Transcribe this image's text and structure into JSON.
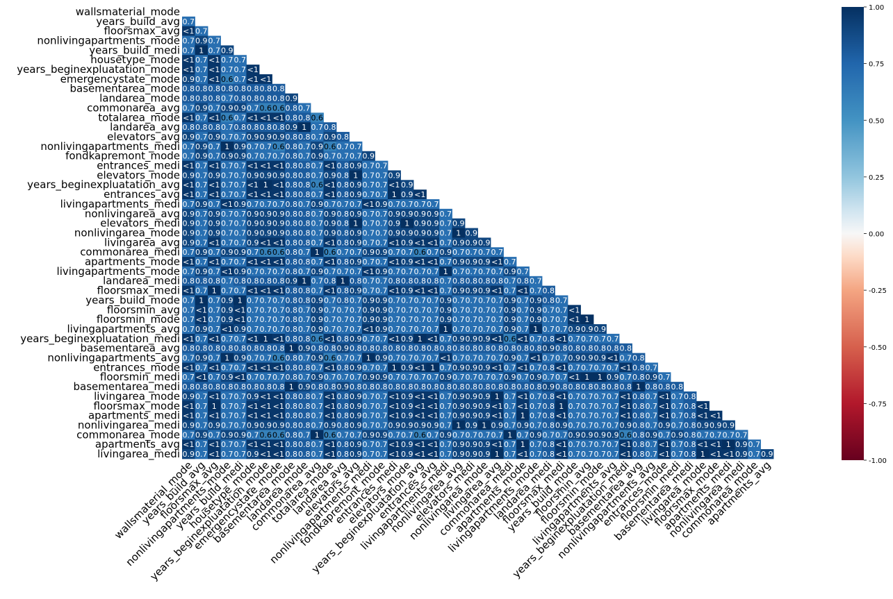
{
  "chart_data": {
    "type": "heatmap",
    "title": "",
    "xlabel": "",
    "ylabel": "",
    "mask": "lower-triangle (strictly below diagonal shown)",
    "variables": [
      "wallsmaterial_mode",
      "years_build_avg",
      "floorsmax_avg",
      "nonlivingapartments_mode",
      "years_build_medi",
      "housetype_mode",
      "years_beginexpluatation_mode",
      "emergencystate_mode",
      "basementarea_mode",
      "landarea_mode",
      "commonarea_avg",
      "totalarea_mode",
      "landarea_avg",
      "elevators_avg",
      "nonlivingapartments_medi",
      "fondkapremont_mode",
      "entrances_medi",
      "elevators_mode",
      "years_beginexpluatation_avg",
      "entrances_avg",
      "livingapartments_medi",
      "nonlivingarea_avg",
      "elevators_medi",
      "nonlivingarea_mode",
      "livingarea_avg",
      "commonarea_medi",
      "apartments_mode",
      "livingapartments_mode",
      "landarea_medi",
      "floorsmax_medi",
      "years_build_mode",
      "floorsmin_avg",
      "floorsmin_mode",
      "livingapartments_avg",
      "years_beginexpluatation_medi",
      "basementarea_avg",
      "nonlivingapartments_avg",
      "entrances_mode",
      "floorsmin_medi",
      "basementarea_medi",
      "livingarea_mode",
      "floorsmax_mode",
      "apartments_medi",
      "nonlivingarea_medi",
      "commonarea_mode",
      "apartments_avg",
      "livingarea_medi"
    ],
    "cells": [
      [],
      [
        "0.7"
      ],
      [
        "<1",
        "0.7"
      ],
      [
        "0.7",
        "0.9",
        "0.7"
      ],
      [
        "0.7",
        "1",
        "0.7",
        "0.9"
      ],
      [
        "<1",
        "0.7",
        "<1",
        "0.7",
        "0.7"
      ],
      [
        "<1",
        "0.7",
        "<1",
        "0.7",
        "0.7",
        "<1"
      ],
      [
        "0.9",
        "0.7",
        "<1",
        "0.6",
        "0.7",
        "<1",
        "<1"
      ],
      [
        "0.8",
        "0.8",
        "0.8",
        "0.8",
        "0.8",
        "0.8",
        "0.8",
        "0.8"
      ],
      [
        "0.8",
        "0.8",
        "0.8",
        "0.7",
        "0.8",
        "0.8",
        "0.8",
        "0.8",
        "0.9"
      ],
      [
        "0.7",
        "0.9",
        "0.7",
        "0.9",
        "0.9",
        "0.7",
        "0.6",
        "0.6",
        "0.8",
        "0.7"
      ],
      [
        "<1",
        "0.7",
        "<1",
        "0.6",
        "0.7",
        "<1",
        "<1",
        "<1",
        "0.8",
        "0.8",
        "0.6"
      ],
      [
        "0.8",
        "0.8",
        "0.8",
        "0.7",
        "0.8",
        "0.8",
        "0.8",
        "0.8",
        "0.9",
        "1",
        "0.7",
        "0.8"
      ],
      [
        "0.9",
        "0.7",
        "0.9",
        "0.7",
        "0.7",
        "0.9",
        "0.9",
        "0.9",
        "0.8",
        "0.8",
        "0.7",
        "0.9",
        "0.8"
      ],
      [
        "0.7",
        "0.9",
        "0.7",
        "1",
        "0.9",
        "0.7",
        "0.7",
        "0.6",
        "0.8",
        "0.7",
        "0.9",
        "0.6",
        "0.7",
        "0.7"
      ],
      [
        "0.7",
        "0.9",
        "0.7",
        "0.9",
        "0.9",
        "0.7",
        "0.7",
        "0.7",
        "0.8",
        "0.7",
        "0.9",
        "0.7",
        "0.7",
        "0.7",
        "0.9"
      ],
      [
        "<1",
        "0.7",
        "<1",
        "0.7",
        "0.7",
        "<1",
        "<1",
        "<1",
        "0.8",
        "0.8",
        "0.7",
        "<1",
        "0.8",
        "0.9",
        "0.7",
        "0.7"
      ],
      [
        "0.9",
        "0.7",
        "0.9",
        "0.7",
        "0.7",
        "0.9",
        "0.9",
        "0.9",
        "0.8",
        "0.8",
        "0.7",
        "0.9",
        "0.8",
        "1",
        "0.7",
        "0.7",
        "0.9"
      ],
      [
        "<1",
        "0.7",
        "<1",
        "0.7",
        "0.7",
        "<1",
        "1",
        "<1",
        "0.8",
        "0.8",
        "0.6",
        "<1",
        "0.8",
        "0.9",
        "0.7",
        "0.7",
        "<1",
        "0.9"
      ],
      [
        "<1",
        "0.7",
        "<1",
        "0.7",
        "0.7",
        "<1",
        "<1",
        "<1",
        "0.8",
        "0.8",
        "0.7",
        "<1",
        "0.8",
        "0.9",
        "0.7",
        "0.7",
        "1",
        "0.9",
        "<1"
      ],
      [
        "0.7",
        "0.9",
        "0.7",
        "<1",
        "0.9",
        "0.7",
        "0.7",
        "0.7",
        "0.8",
        "0.7",
        "0.9",
        "0.7",
        "0.7",
        "0.7",
        "<1",
        "0.9",
        "0.7",
        "0.7",
        "0.7",
        "0.7"
      ],
      [
        "0.9",
        "0.7",
        "0.9",
        "0.7",
        "0.7",
        "0.9",
        "0.9",
        "0.9",
        "0.8",
        "0.8",
        "0.7",
        "0.9",
        "0.8",
        "0.9",
        "0.7",
        "0.7",
        "0.9",
        "0.9",
        "0.9",
        "0.9",
        "0.7"
      ],
      [
        "0.9",
        "0.7",
        "0.9",
        "0.7",
        "0.7",
        "0.9",
        "0.9",
        "0.9",
        "0.8",
        "0.8",
        "0.7",
        "0.9",
        "0.8",
        "1",
        "0.7",
        "0.7",
        "0.9",
        "1",
        "0.9",
        "0.9",
        "0.7",
        "0.9"
      ],
      [
        "0.9",
        "0.7",
        "0.9",
        "0.7",
        "0.7",
        "0.9",
        "0.9",
        "0.9",
        "0.8",
        "0.8",
        "0.7",
        "0.9",
        "0.8",
        "0.9",
        "0.7",
        "0.7",
        "0.9",
        "0.9",
        "0.9",
        "0.9",
        "0.7",
        "1",
        "0.9"
      ],
      [
        "0.9",
        "0.7",
        "<1",
        "0.7",
        "0.7",
        "0.9",
        "<1",
        "<1",
        "0.8",
        "0.8",
        "0.7",
        "<1",
        "0.8",
        "0.9",
        "0.7",
        "0.7",
        "<1",
        "0.9",
        "<1",
        "<1",
        "0.7",
        "0.9",
        "0.9",
        "0.9"
      ],
      [
        "0.7",
        "0.9",
        "0.7",
        "0.9",
        "0.9",
        "0.7",
        "0.6",
        "0.6",
        "0.8",
        "0.7",
        "1",
        "0.6",
        "0.7",
        "0.7",
        "0.9",
        "0.9",
        "0.7",
        "0.7",
        "0.6",
        "0.7",
        "0.9",
        "0.7",
        "0.7",
        "0.7",
        "0.7"
      ],
      [
        "<1",
        "0.7",
        "<1",
        "0.7",
        "0.7",
        "<1",
        "<1",
        "<1",
        "0.8",
        "0.8",
        "0.7",
        "<1",
        "0.8",
        "0.9",
        "0.7",
        "0.7",
        "<1",
        "0.9",
        "<1",
        "<1",
        "0.7",
        "0.9",
        "0.9",
        "0.9",
        "<1",
        "0.7"
      ],
      [
        "0.7",
        "0.9",
        "0.7",
        "<1",
        "0.9",
        "0.7",
        "0.7",
        "0.7",
        "0.8",
        "0.7",
        "0.9",
        "0.7",
        "0.7",
        "0.7",
        "<1",
        "0.9",
        "0.7",
        "0.7",
        "0.7",
        "0.7",
        "1",
        "0.7",
        "0.7",
        "0.7",
        "0.7",
        "0.9",
        "0.7"
      ],
      [
        "0.8",
        "0.8",
        "0.8",
        "0.7",
        "0.8",
        "0.8",
        "0.8",
        "0.8",
        "0.9",
        "1",
        "0.7",
        "0.8",
        "1",
        "0.8",
        "0.7",
        "0.7",
        "0.8",
        "0.8",
        "0.8",
        "0.8",
        "0.7",
        "0.8",
        "0.8",
        "0.8",
        "0.8",
        "0.7",
        "0.8",
        "0.7"
      ],
      [
        "<1",
        "0.7",
        "1",
        "0.7",
        "0.7",
        "<1",
        "<1",
        "<1",
        "0.8",
        "0.8",
        "0.7",
        "<1",
        "0.8",
        "0.9",
        "0.7",
        "0.7",
        "<1",
        "0.9",
        "<1",
        "<1",
        "0.7",
        "0.9",
        "0.9",
        "0.9",
        "<1",
        "0.7",
        "<1",
        "0.7",
        "0.8"
      ],
      [
        "0.7",
        "1",
        "0.7",
        "0.9",
        "1",
        "0.7",
        "0.7",
        "0.7",
        "0.8",
        "0.8",
        "0.9",
        "0.7",
        "0.8",
        "0.7",
        "0.9",
        "0.9",
        "0.7",
        "0.7",
        "0.7",
        "0.7",
        "0.9",
        "0.7",
        "0.7",
        "0.7",
        "0.7",
        "0.9",
        "0.7",
        "0.9",
        "0.8",
        "0.7"
      ],
      [
        "0.7",
        "<1",
        "0.7",
        "0.9",
        "<1",
        "0.7",
        "0.7",
        "0.7",
        "0.8",
        "0.7",
        "0.9",
        "0.7",
        "0.7",
        "0.7",
        "0.9",
        "0.9",
        "0.7",
        "0.7",
        "0.7",
        "0.7",
        "0.9",
        "0.7",
        "0.7",
        "0.7",
        "0.7",
        "0.9",
        "0.7",
        "0.9",
        "0.7",
        "0.7",
        "<1"
      ],
      [
        "0.7",
        "<1",
        "0.7",
        "0.9",
        "<1",
        "0.7",
        "0.7",
        "0.7",
        "0.8",
        "0.7",
        "0.9",
        "0.7",
        "0.7",
        "0.7",
        "0.9",
        "0.9",
        "0.7",
        "0.7",
        "0.7",
        "0.7",
        "0.9",
        "0.7",
        "0.7",
        "0.7",
        "0.7",
        "0.9",
        "0.7",
        "0.9",
        "0.7",
        "0.7",
        "<1",
        "1"
      ],
      [
        "0.7",
        "0.9",
        "0.7",
        "<1",
        "0.9",
        "0.7",
        "0.7",
        "0.7",
        "0.8",
        "0.7",
        "0.9",
        "0.7",
        "0.7",
        "0.7",
        "<1",
        "0.9",
        "0.7",
        "0.7",
        "0.7",
        "0.7",
        "1",
        "0.7",
        "0.7",
        "0.7",
        "0.7",
        "0.9",
        "0.7",
        "1",
        "0.7",
        "0.7",
        "0.9",
        "0.9",
        "0.9"
      ],
      [
        "<1",
        "0.7",
        "<1",
        "0.7",
        "0.7",
        "<1",
        "1",
        "<1",
        "0.8",
        "0.8",
        "0.6",
        "<1",
        "0.8",
        "0.9",
        "0.7",
        "0.7",
        "<1",
        "0.9",
        "1",
        "<1",
        "0.7",
        "0.9",
        "0.9",
        "0.9",
        "<1",
        "0.6",
        "<1",
        "0.7",
        "0.8",
        "<1",
        "0.7",
        "0.7",
        "0.7",
        "0.7"
      ],
      [
        "0.8",
        "0.8",
        "0.8",
        "0.8",
        "0.8",
        "0.8",
        "0.8",
        "0.8",
        "1",
        "0.9",
        "0.8",
        "0.8",
        "0.9",
        "0.8",
        "0.8",
        "0.8",
        "0.8",
        "0.8",
        "0.8",
        "0.8",
        "0.8",
        "0.8",
        "0.8",
        "0.8",
        "0.8",
        "0.8",
        "0.8",
        "0.8",
        "0.9",
        "0.8",
        "0.8",
        "0.8",
        "0.8",
        "0.8",
        "0.8"
      ],
      [
        "0.7",
        "0.9",
        "0.7",
        "1",
        "0.9",
        "0.7",
        "0.7",
        "0.6",
        "0.8",
        "0.7",
        "0.9",
        "0.6",
        "0.7",
        "0.7",
        "1",
        "0.9",
        "0.7",
        "0.7",
        "0.7",
        "0.7",
        "<1",
        "0.7",
        "0.7",
        "0.7",
        "0.7",
        "0.9",
        "0.7",
        "<1",
        "0.7",
        "0.7",
        "0.9",
        "0.9",
        "0.9",
        "<1",
        "0.7",
        "0.8"
      ],
      [
        "<1",
        "0.7",
        "<1",
        "0.7",
        "0.7",
        "<1",
        "<1",
        "<1",
        "0.8",
        "0.8",
        "0.7",
        "<1",
        "0.8",
        "0.9",
        "0.7",
        "0.7",
        "1",
        "0.9",
        "<1",
        "1",
        "0.7",
        "0.9",
        "0.9",
        "0.9",
        "<1",
        "0.7",
        "<1",
        "0.7",
        "0.8",
        "<1",
        "0.7",
        "0.7",
        "0.7",
        "0.7",
        "<1",
        "0.8",
        "0.7"
      ],
      [
        "0.7",
        "<1",
        "0.7",
        "0.9",
        "<1",
        "0.7",
        "0.7",
        "0.7",
        "0.8",
        "0.7",
        "0.9",
        "0.7",
        "0.7",
        "0.7",
        "0.9",
        "0.9",
        "0.7",
        "0.7",
        "0.7",
        "0.7",
        "0.9",
        "0.7",
        "0.7",
        "0.7",
        "0.7",
        "0.9",
        "0.7",
        "0.9",
        "0.7",
        "0.7",
        "<1",
        "1",
        "1",
        "0.9",
        "0.7",
        "0.8",
        "0.9",
        "0.7"
      ],
      [
        "0.8",
        "0.8",
        "0.8",
        "0.8",
        "0.8",
        "0.8",
        "0.8",
        "0.8",
        "1",
        "0.9",
        "0.8",
        "0.8",
        "0.9",
        "0.8",
        "0.8",
        "0.8",
        "0.8",
        "0.8",
        "0.8",
        "0.8",
        "0.8",
        "0.8",
        "0.8",
        "0.8",
        "0.8",
        "0.8",
        "0.8",
        "0.8",
        "0.9",
        "0.8",
        "0.8",
        "0.8",
        "0.8",
        "0.8",
        "0.8",
        "1",
        "0.8",
        "0.8",
        "0.8"
      ],
      [
        "0.9",
        "0.7",
        "<1",
        "0.7",
        "0.7",
        "0.9",
        "<1",
        "<1",
        "0.8",
        "0.8",
        "0.7",
        "<1",
        "0.8",
        "0.9",
        "0.7",
        "0.7",
        "<1",
        "0.9",
        "<1",
        "<1",
        "0.7",
        "0.9",
        "0.9",
        "0.9",
        "1",
        "0.7",
        "<1",
        "0.7",
        "0.8",
        "<1",
        "0.7",
        "0.7",
        "0.7",
        "0.7",
        "<1",
        "0.8",
        "0.7",
        "<1",
        "0.7",
        "0.8"
      ],
      [
        "<1",
        "0.7",
        "1",
        "0.7",
        "0.7",
        "<1",
        "<1",
        "<1",
        "0.8",
        "0.8",
        "0.7",
        "<1",
        "0.8",
        "0.9",
        "0.7",
        "0.7",
        "<1",
        "0.9",
        "<1",
        "<1",
        "0.7",
        "0.9",
        "0.9",
        "0.9",
        "<1",
        "0.7",
        "<1",
        "0.7",
        "0.8",
        "1",
        "0.7",
        "0.7",
        "0.7",
        "0.7",
        "<1",
        "0.8",
        "0.7",
        "<1",
        "0.7",
        "0.8",
        "<1"
      ],
      [
        "<1",
        "0.7",
        "<1",
        "0.7",
        "0.7",
        "<1",
        "<1",
        "<1",
        "0.8",
        "0.8",
        "0.7",
        "<1",
        "0.8",
        "0.9",
        "0.7",
        "0.7",
        "<1",
        "0.9",
        "<1",
        "<1",
        "0.7",
        "0.9",
        "0.9",
        "0.9",
        "<1",
        "0.7",
        "1",
        "0.7",
        "0.8",
        "<1",
        "0.7",
        "0.7",
        "0.7",
        "0.7",
        "<1",
        "0.8",
        "0.7",
        "<1",
        "0.7",
        "0.8",
        "<1",
        "<1"
      ],
      [
        "0.9",
        "0.7",
        "0.9",
        "0.7",
        "0.7",
        "0.9",
        "0.9",
        "0.9",
        "0.8",
        "0.8",
        "0.7",
        "0.9",
        "0.8",
        "0.9",
        "0.7",
        "0.7",
        "0.9",
        "0.9",
        "0.9",
        "0.9",
        "0.7",
        "1",
        "0.9",
        "1",
        "0.9",
        "0.7",
        "0.9",
        "0.7",
        "0.8",
        "0.9",
        "0.7",
        "0.7",
        "0.7",
        "0.7",
        "0.9",
        "0.8",
        "0.7",
        "0.9",
        "0.7",
        "0.8",
        "0.9",
        "0.9",
        "0.9"
      ],
      [
        "0.7",
        "0.9",
        "0.7",
        "0.9",
        "0.9",
        "0.7",
        "0.6",
        "0.6",
        "0.8",
        "0.7",
        "1",
        "0.6",
        "0.7",
        "0.7",
        "0.9",
        "0.9",
        "0.7",
        "0.7",
        "0.6",
        "0.7",
        "0.9",
        "0.7",
        "0.7",
        "0.7",
        "0.7",
        "1",
        "0.7",
        "0.9",
        "0.7",
        "0.7",
        "0.9",
        "0.9",
        "0.9",
        "0.9",
        "0.6",
        "0.8",
        "0.9",
        "0.7",
        "0.9",
        "0.8",
        "0.7",
        "0.7",
        "0.7",
        "0.7"
      ],
      [
        "<1",
        "0.7",
        "<1",
        "0.7",
        "0.7",
        "<1",
        "<1",
        "<1",
        "0.8",
        "0.8",
        "0.7",
        "<1",
        "0.8",
        "0.9",
        "0.7",
        "0.7",
        "<1",
        "0.9",
        "<1",
        "<1",
        "0.7",
        "0.9",
        "0.9",
        "0.9",
        "<1",
        "0.7",
        "1",
        "0.7",
        "0.8",
        "<1",
        "0.7",
        "0.7",
        "0.7",
        "0.7",
        "<1",
        "0.8",
        "0.7",
        "<1",
        "0.7",
        "0.8",
        "<1",
        "<1",
        "1",
        "0.9",
        "0.7"
      ],
      [
        "0.9",
        "0.7",
        "<1",
        "0.7",
        "0.7",
        "0.9",
        "<1",
        "<1",
        "0.8",
        "0.8",
        "0.7",
        "<1",
        "0.8",
        "0.9",
        "0.7",
        "0.7",
        "<1",
        "0.9",
        "<1",
        "<1",
        "0.7",
        "0.9",
        "0.9",
        "0.9",
        "1",
        "0.7",
        "<1",
        "0.7",
        "0.8",
        "<1",
        "0.7",
        "0.7",
        "0.7",
        "0.7",
        "<1",
        "0.8",
        "0.7",
        "<1",
        "0.7",
        "0.8",
        "1",
        "<1",
        "<1",
        "0.9",
        "0.7",
        "0.9"
      ]
    ],
    "colorbar": {
      "ticks": [
        "1.00",
        "0.75",
        "0.50",
        "0.25",
        "0.00",
        "-0.25",
        "-0.50",
        "-0.75",
        "-1.00"
      ],
      "vmin": -1,
      "vmax": 1,
      "colormap": "RdBu"
    }
  }
}
